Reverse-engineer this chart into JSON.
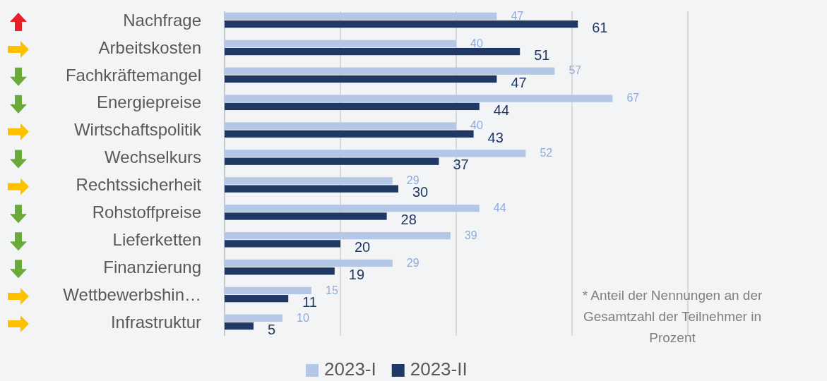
{
  "chart_data": {
    "type": "bar",
    "orientation": "horizontal",
    "categories": [
      "Nachfrage",
      "Arbeitskosten",
      "Fachkräftemangel",
      "Energiepreise",
      "Wirtschaftspolitik",
      "Wechselkurs",
      "Rechtssicherheit",
      "Rohstoffpreise",
      "Lieferketten",
      "Finanzierung",
      "Wettbewerbshin…",
      "Infrastruktur"
    ],
    "series": [
      {
        "name": "2023-I",
        "color": "#b4c7e7",
        "values": [
          47,
          40,
          57,
          67,
          40,
          52,
          29,
          44,
          39,
          29,
          15,
          10
        ]
      },
      {
        "name": "2023-II",
        "color": "#1f3864",
        "values": [
          61,
          51,
          47,
          44,
          43,
          37,
          30,
          28,
          20,
          19,
          11,
          5
        ]
      }
    ],
    "xlim": [
      0,
      80
    ],
    "xticks": [
      {
        "value": 0,
        "label": null
      },
      {
        "value": 20,
        "label": null
      },
      {
        "value": 40,
        "label": null
      },
      {
        "value": 60,
        "label": null
      },
      {
        "value": 80,
        "label": null
      }
    ],
    "tick_labels": "y",
    "grid": "x",
    "legend": "bottom",
    "data_labels": true,
    "annotations": [
      "* Anteil der Nennungen an der Gesamtzahl der Teilnehmer in Prozent"
    ]
  }
}
